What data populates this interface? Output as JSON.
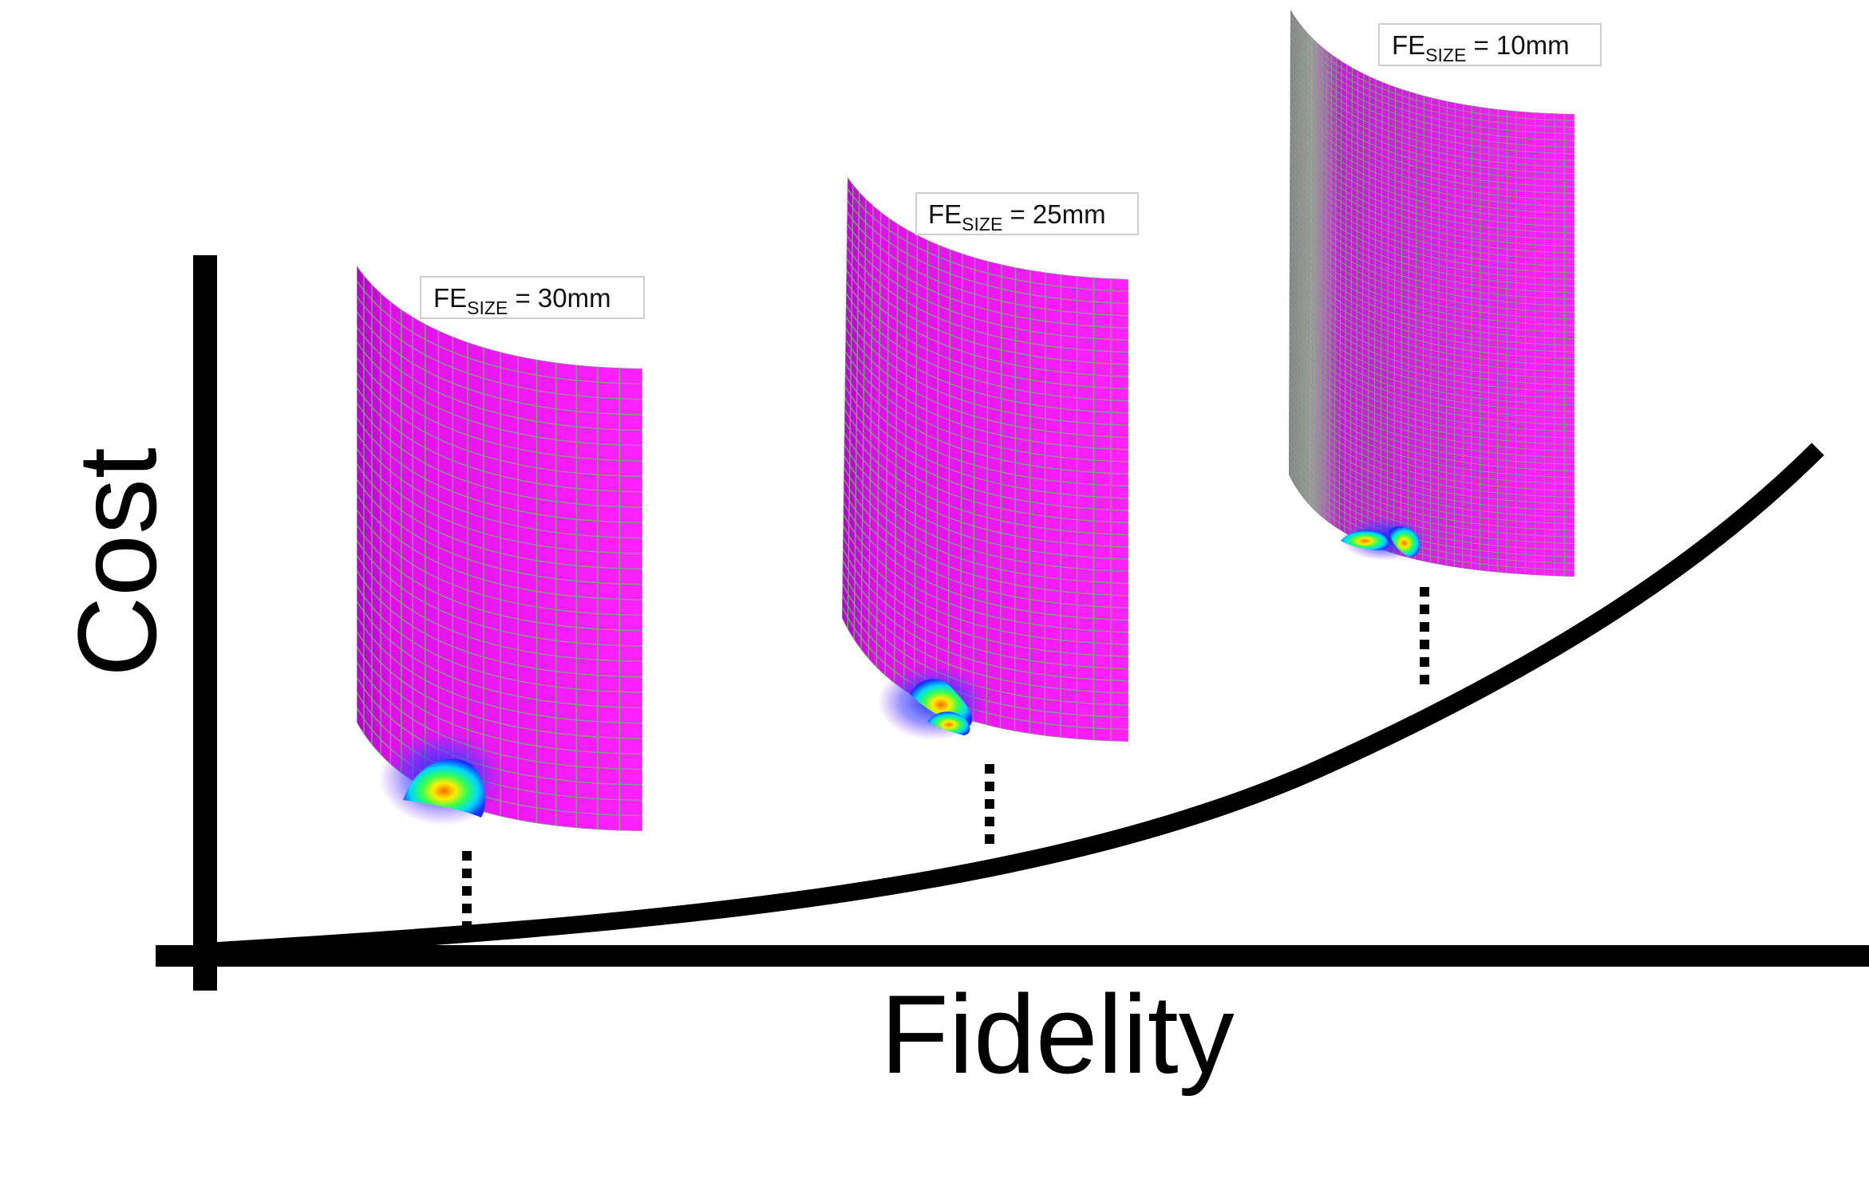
{
  "axes": {
    "x_label": "Fidelity",
    "y_label": "Cost"
  },
  "curve": {
    "color": "#000000",
    "shape": "increasing convex curve from the origin"
  },
  "models": [
    {
      "label_main": "FE",
      "label_sub": "SIZE",
      "label_value": " = 30mm",
      "mesh_divisions": 30
    },
    {
      "label_main": "FE",
      "label_sub": "SIZE",
      "label_value": " = 25mm",
      "mesh_divisions": 38
    },
    {
      "label_main": "FE",
      "label_sub": "SIZE",
      "label_value": " = 10mm",
      "mesh_divisions": 70
    }
  ],
  "colors": {
    "shell_fill": "#ee11f0",
    "mesh_line": "#8a9a8a",
    "dent_colors": [
      "#2233ff",
      "#00ccff",
      "#44ff66",
      "#ffee00",
      "#ff7700"
    ],
    "axis": "#000000"
  }
}
